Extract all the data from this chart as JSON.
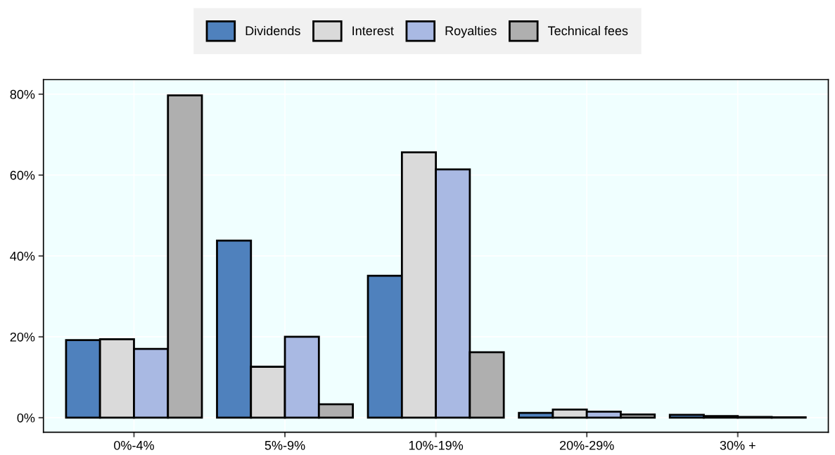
{
  "chart_data": {
    "type": "bar",
    "categories": [
      "0%-4%",
      "5%-9%",
      "10%-19%",
      "20%-29%",
      "30% +"
    ],
    "series": [
      {
        "name": "Dividends",
        "color": "#4f81bd",
        "values": [
          19.2,
          43.8,
          35.1,
          1.2,
          0.7
        ]
      },
      {
        "name": "Interest",
        "color": "#dadada",
        "values": [
          19.4,
          12.6,
          65.6,
          2.0,
          0.4
        ]
      },
      {
        "name": "Royalties",
        "color": "#a9b9e3",
        "values": [
          17.0,
          20.0,
          61.4,
          1.5,
          0.2
        ]
      },
      {
        "name": "Technical fees",
        "color": "#afafaf",
        "values": [
          79.7,
          3.3,
          16.2,
          0.8,
          0.1
        ]
      }
    ],
    "ylim": [
      -3.6,
      83.6
    ],
    "yticks": [
      {
        "value": 0,
        "label": "0%"
      },
      {
        "value": 20,
        "label": "20%"
      },
      {
        "value": 40,
        "label": "40%"
      },
      {
        "value": 60,
        "label": "60%"
      },
      {
        "value": 80,
        "label": "80%"
      }
    ],
    "grid": true,
    "legend": "top"
  }
}
